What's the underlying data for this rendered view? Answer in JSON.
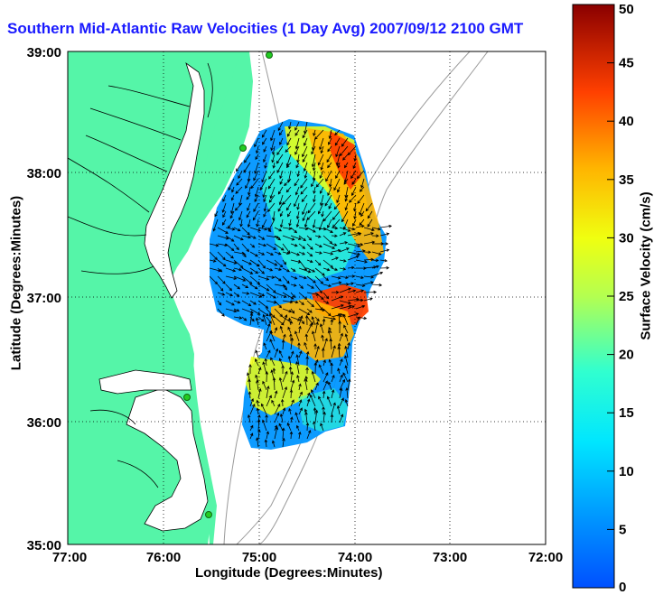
{
  "title": "Southern Mid-Atlantic Raw Velocities (1 Day Avg) 2007/09/12 2100 GMT",
  "axes": {
    "xlabel": "Longitude (Degrees:Minutes)",
    "ylabel": "Latitude (Degrees:Minutes)",
    "x_ticks": [
      "77:00",
      "76:00",
      "75:00",
      "74:00",
      "73:00",
      "72:00"
    ],
    "y_ticks": [
      "39:00",
      "38:00",
      "37:00",
      "36:00",
      "35:00"
    ],
    "xlim": [
      -77,
      -72
    ],
    "ylim": [
      35,
      39
    ],
    "grid": "dotted"
  },
  "colorbar": {
    "label": "Surface Velocity (cm/s)",
    "ticks": [
      "0",
      "5",
      "10",
      "15",
      "20",
      "25",
      "30",
      "35",
      "40",
      "45",
      "50"
    ],
    "range": [
      0,
      50
    ],
    "colormap": "jet"
  },
  "colors": {
    "land": "#55f5a8",
    "water": "#ffffff",
    "title": "#1a1aff",
    "station": "#22cc22",
    "bathymetry": "#9a9a9a"
  },
  "stations": [
    {
      "lon": -75.1,
      "lat": 39.0
    },
    {
      "lon": -75.15,
      "lat": 38.22
    },
    {
      "lon": -75.83,
      "lat": 36.18
    },
    {
      "lon": -75.47,
      "lat": 35.24
    }
  ]
}
